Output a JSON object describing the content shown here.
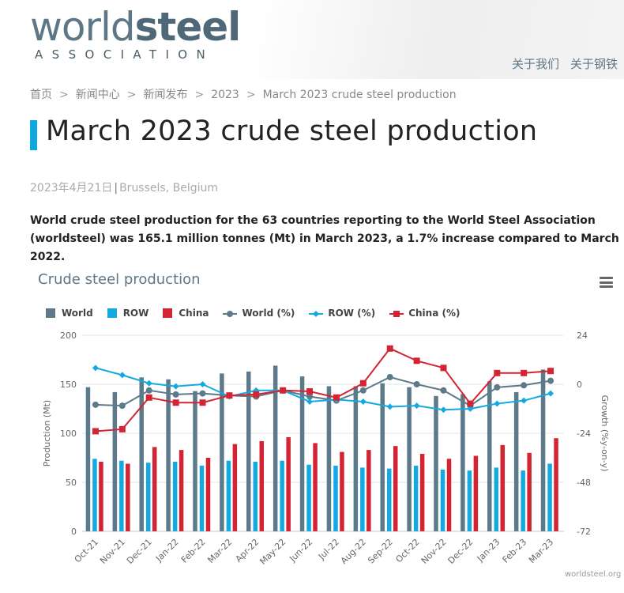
{
  "header": {
    "logo_main": "world",
    "logo_bold": "steel",
    "logo_sub": "ASSOCIATION",
    "nav": [
      "关于我们",
      "关于钢铁"
    ]
  },
  "breadcrumb": {
    "items": [
      "首页",
      "新闻中心",
      "新闻发布",
      "2023",
      "March 2023 crude steel production"
    ],
    "separator": ">"
  },
  "article": {
    "title": "March 2023 crude steel production",
    "date": "2023年4月21日",
    "separator": "|",
    "location": "Brussels, Belgium",
    "lead": "World crude steel production for the 63 countries reporting to the World Steel Association (worldsteel) was 165.1 million tonnes (Mt) in March 2023, a 1.7% increase compared to March 2022."
  },
  "colors": {
    "world": "#5c7a8a",
    "row": "#15a9e1",
    "china": "#d42333",
    "accent": "#10a6de"
  },
  "chart_data": {
    "type": "bar+line",
    "title": "Crude steel production",
    "credit": "worldsteel.org",
    "categories": [
      "Oct-21",
      "Nov-21",
      "Dec-21",
      "Jan-22",
      "Feb-22",
      "Mar-22",
      "Apr-22",
      "May-22",
      "Jun-22",
      "Jul-22",
      "Aug-22",
      "Sep-22",
      "Oct-22",
      "Nov-22",
      "Dec-22",
      "Jan-23",
      "Feb-23",
      "Mar-23"
    ],
    "ylabel_left": "Production (Mt)",
    "ylabel_right": "Growth (%y-on-y)",
    "yleft_range": [
      0,
      200
    ],
    "yleft_ticks": [
      "0",
      "50",
      "100",
      "150",
      "200"
    ],
    "yright_range": [
      -72,
      24
    ],
    "yright_ticks": [
      "-72",
      "-48",
      "-24",
      "0",
      "24"
    ],
    "bar_series": [
      {
        "name": "World",
        "values": [
          147,
          142,
          157,
          155,
          143,
          161,
          163,
          169,
          158,
          148,
          148,
          151,
          147,
          138,
          140,
          153,
          142,
          165
        ]
      },
      {
        "name": "ROW",
        "values": [
          74,
          72,
          70,
          71,
          67,
          72,
          71,
          72,
          68,
          67,
          65,
          64,
          67,
          63,
          62,
          65,
          62,
          69
        ]
      },
      {
        "name": "China",
        "values": [
          71,
          69,
          86,
          83,
          75,
          89,
          92,
          96,
          90,
          81,
          83,
          87,
          79,
          74,
          77,
          88,
          80,
          95
        ]
      }
    ],
    "line_series": [
      {
        "name": "World (%)",
        "values": [
          -10,
          -10.5,
          -3,
          -5,
          -4.5,
          -5.5,
          -6,
          -3,
          -6,
          -8,
          -3,
          3.5,
          0,
          -3,
          -10.5,
          -1.5,
          -0.5,
          1.7
        ]
      },
      {
        "name": "ROW (%)",
        "values": [
          8,
          4.5,
          0.5,
          -1,
          0,
          -6,
          -3,
          -3,
          -8.5,
          -7.5,
          -8.5,
          -11,
          -10.5,
          -12.5,
          -12,
          -9.5,
          -8,
          -4.5
        ]
      },
      {
        "name": "China (%)",
        "values": [
          -23,
          -22,
          -6.5,
          -9,
          -9,
          -5.5,
          -5,
          -3,
          -3.5,
          -6.5,
          0.5,
          17.5,
          11.5,
          8,
          -9.5,
          5.5,
          5.5,
          6.5
        ]
      }
    ],
    "legend": [
      "World",
      "ROW",
      "China",
      "World (%)",
      "ROW (%)",
      "China (%)"
    ],
    "legend_position": "top"
  }
}
